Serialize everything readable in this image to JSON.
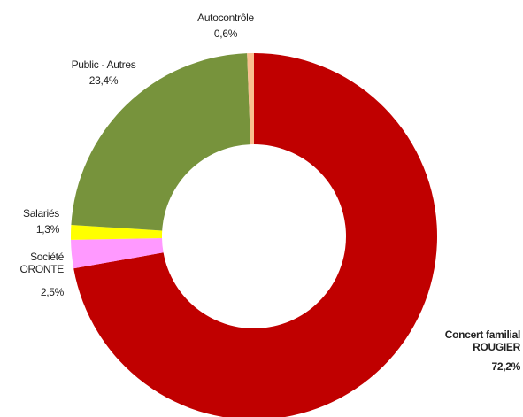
{
  "chart_data": {
    "type": "donut",
    "categories": [
      "Concert familial\nROUGIER",
      "Société\nORONTE",
      "Salariés",
      "Public - Autres",
      "Autocontrôle"
    ],
    "values": [
      72.2,
      2.5,
      1.3,
      23.4,
      0.6
    ],
    "value_labels": [
      "72,2%",
      "2,5%",
      "1,3%",
      "23,4%",
      "0,6%"
    ],
    "colors": [
      "#c00000",
      "#ff99ff",
      "#ffff00",
      "#77933c",
      "#fabf8f"
    ]
  }
}
